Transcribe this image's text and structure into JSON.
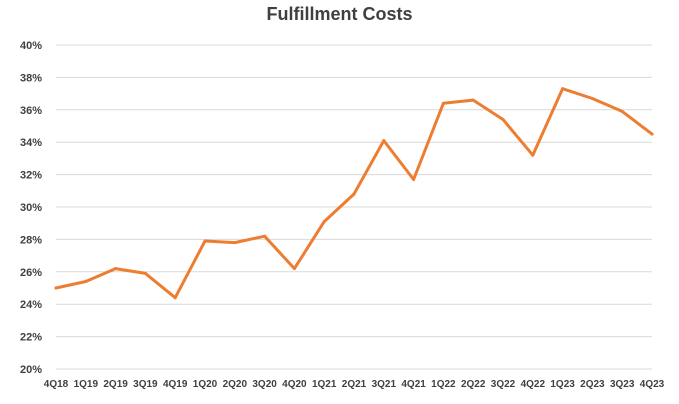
{
  "chart_data": {
    "type": "line",
    "title": "Fulfillment Costs",
    "xlabel": "",
    "ylabel": "",
    "categories": [
      "4Q18",
      "1Q19",
      "2Q19",
      "3Q19",
      "4Q19",
      "1Q20",
      "2Q20",
      "3Q20",
      "4Q20",
      "1Q21",
      "2Q21",
      "3Q21",
      "4Q21",
      "1Q22",
      "2Q22",
      "3Q22",
      "4Q22",
      "1Q23",
      "2Q23",
      "3Q23",
      "4Q23"
    ],
    "series": [
      {
        "values": [
          25.0,
          25.4,
          26.2,
          25.9,
          24.4,
          27.9,
          27.8,
          28.2,
          26.2,
          29.1,
          30.8,
          34.1,
          31.7,
          36.4,
          36.6,
          35.4,
          33.2,
          37.3,
          36.7,
          35.9,
          34.5
        ]
      }
    ],
    "ylim": [
      20,
      40
    ],
    "yticks": [
      20,
      22,
      24,
      26,
      28,
      30,
      32,
      34,
      36,
      38,
      40
    ],
    "ytick_format": "percent",
    "grid": true,
    "legend": "none",
    "line_color": "#ED7D31",
    "grid_color": "#D9D9D9",
    "text_color": "#404040"
  }
}
